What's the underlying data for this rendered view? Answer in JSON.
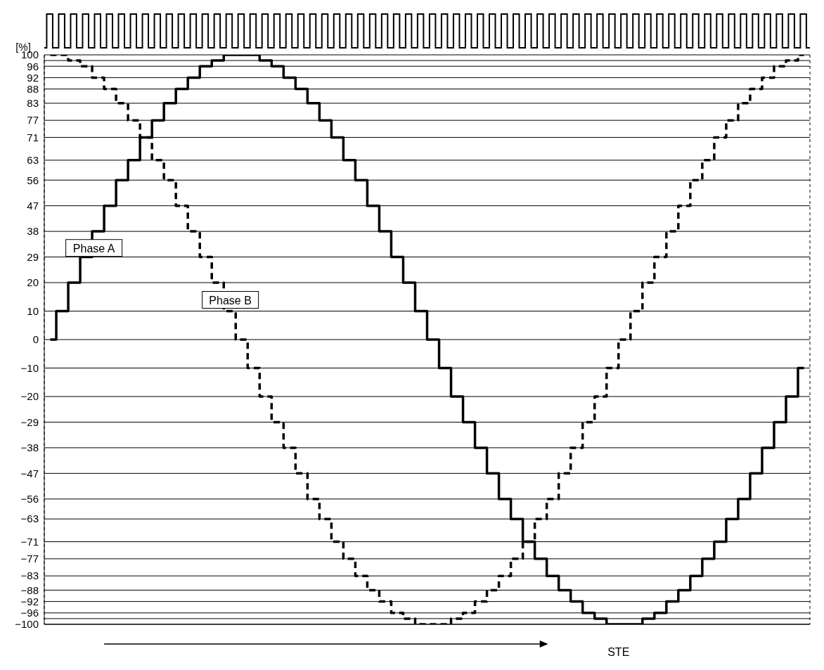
{
  "chart_data": {
    "type": "step",
    "ylabel": "[%]",
    "annotations": [
      "STE"
    ],
    "categories": [
      null,
      null,
      null,
      null,
      null,
      null,
      null,
      null,
      null,
      null,
      null,
      null,
      null,
      null,
      null,
      null,
      null,
      null,
      null,
      null,
      null,
      null,
      null,
      null,
      null,
      null,
      null,
      null,
      null,
      null,
      null,
      null,
      null,
      null,
      null,
      null,
      null,
      null,
      null,
      null,
      null,
      null,
      null,
      null,
      null,
      null,
      null,
      null,
      null,
      null,
      null,
      null,
      null,
      null,
      null,
      null,
      null,
      null,
      null,
      null,
      null,
      null,
      null,
      null
    ],
    "series": [
      {
        "name": "Phase A",
        "color": "#000000",
        "line_style": "solid",
        "values": [
          0,
          10,
          20,
          29,
          38,
          47,
          56,
          63,
          71,
          77,
          83,
          88,
          92,
          96,
          98,
          100,
          100,
          100,
          98,
          96,
          92,
          88,
          83,
          77,
          71,
          63,
          56,
          47,
          38,
          29,
          20,
          10,
          0,
          -10,
          -20,
          -29,
          -38,
          -47,
          -56,
          -63,
          -71,
          -77,
          -83,
          -88,
          -92,
          -96,
          -98,
          -100,
          -100,
          -100,
          -98,
          -96,
          -92,
          -88,
          -83,
          -77,
          -71,
          -63,
          -56,
          -47,
          -38,
          -29,
          -20,
          -10
        ]
      },
      {
        "name": "Phase B",
        "color": "#000000",
        "line_style": "dashed",
        "values": [
          100,
          100,
          98,
          96,
          92,
          88,
          83,
          77,
          71,
          63,
          56,
          47,
          38,
          29,
          20,
          10,
          0,
          -10,
          -20,
          -29,
          -38,
          -47,
          -56,
          -63,
          -71,
          -77,
          -83,
          -88,
          -92,
          -96,
          -98,
          -100,
          -100,
          -100,
          -98,
          -96,
          -92,
          -88,
          -83,
          -77,
          -71,
          -63,
          -56,
          -47,
          -38,
          -29,
          -20,
          -10,
          0,
          10,
          20,
          29,
          38,
          47,
          56,
          63,
          71,
          77,
          83,
          88,
          92,
          96,
          98,
          100
        ]
      }
    ],
    "ylim": [
      -100,
      100
    ],
    "yticks": [
      100,
      {
        "value": 98,
        "label": null
      },
      96,
      92,
      88,
      83,
      77,
      71,
      63,
      56,
      47,
      38,
      29,
      20,
      10,
      0,
      {
        "value": -10,
        "label": "−10"
      },
      {
        "value": -20,
        "label": "−20"
      },
      {
        "value": -29,
        "label": "−29"
      },
      {
        "value": -38,
        "label": "−38"
      },
      {
        "value": -47,
        "label": "−47"
      },
      {
        "value": -56,
        "label": "−56"
      },
      {
        "value": -63,
        "label": "−63"
      },
      {
        "value": -71,
        "label": "−71"
      },
      {
        "value": -77,
        "label": "−77"
      },
      {
        "value": -83,
        "label": "−83"
      },
      {
        "value": -88,
        "label": "−88"
      },
      {
        "value": -92,
        "label": "−92"
      },
      {
        "value": -96,
        "label": "−96"
      },
      {
        "value": -98,
        "label": null
      },
      {
        "value": -100,
        "label": "−100"
      }
    ],
    "grid": true,
    "tick_labels": "y",
    "marker": "none"
  }
}
